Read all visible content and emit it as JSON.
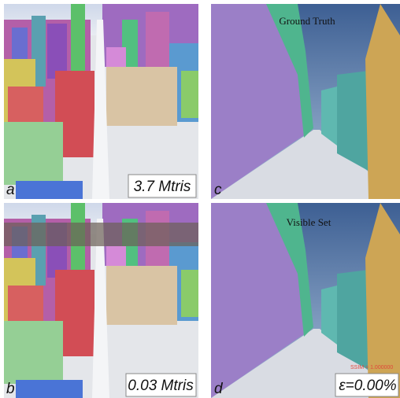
{
  "panels": [
    {
      "letter": "a",
      "caption": "3.7 Mtris"
    },
    {
      "letter": "b",
      "caption": "0.03 Mtris"
    },
    {
      "letter": "c",
      "title": "Ground Truth"
    },
    {
      "letter": "d",
      "title": "Visible Set",
      "caption": "ε=0.00%",
      "note": "SSIM = 1.000000"
    }
  ]
}
